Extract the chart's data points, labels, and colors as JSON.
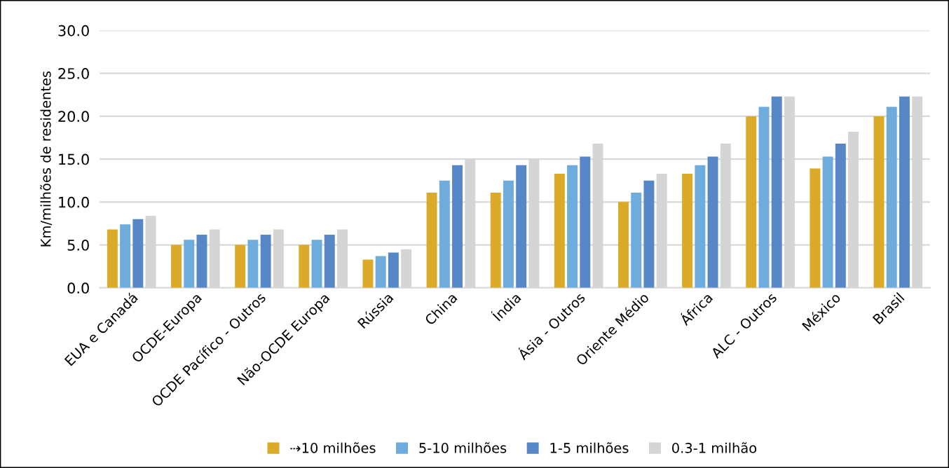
{
  "chart_data": {
    "type": "bar",
    "ylabel": "Km/milhões de residentes",
    "categories": [
      "EUA e Canadá",
      "OCDE-Europa",
      "OCDE Pacífico - Outros",
      "Não-OCDE Europa",
      "Rússia",
      "China",
      "Índia",
      "Ásia - Outros",
      "Oriente Médio",
      "África",
      "ALC - Outros",
      "México",
      "Brasil"
    ],
    "series": [
      {
        "name": "⇢10 milhões",
        "color": "#daaa28",
        "values": [
          6.8,
          5.0,
          5.0,
          5.0,
          3.3,
          11.1,
          11.1,
          13.3,
          10.0,
          13.3,
          20.0,
          13.9,
          20.0
        ]
      },
      {
        "name": "5-10 milhões",
        "color": "#6eacde",
        "values": [
          7.4,
          5.6,
          5.6,
          5.6,
          3.7,
          12.5,
          12.5,
          14.3,
          11.1,
          14.3,
          21.1,
          15.3,
          21.1
        ]
      },
      {
        "name": "1-5 milhões",
        "color": "#5787c6",
        "values": [
          8.0,
          6.2,
          6.2,
          6.2,
          4.1,
          14.3,
          14.3,
          15.3,
          12.5,
          15.3,
          22.3,
          16.8,
          22.3
        ]
      },
      {
        "name": "0.3-1 milhão",
        "color": "#d5d5d5",
        "values": [
          8.4,
          6.8,
          6.8,
          6.8,
          4.5,
          15.1,
          15.1,
          16.8,
          13.3,
          16.8,
          22.3,
          18.2,
          22.3
        ]
      }
    ],
    "ylim": [
      0,
      30
    ],
    "yticks": [
      {
        "value": 0,
        "label": "0.0"
      },
      {
        "value": 5,
        "label": "5.0"
      },
      {
        "value": 10,
        "label": "10.0"
      },
      {
        "value": 15,
        "label": "15.0"
      },
      {
        "value": 20,
        "label": "20.0"
      },
      {
        "value": 25,
        "label": "25.0"
      },
      {
        "value": 30,
        "label": "30.0"
      }
    ],
    "grid": "y",
    "legend": "bottom"
  }
}
